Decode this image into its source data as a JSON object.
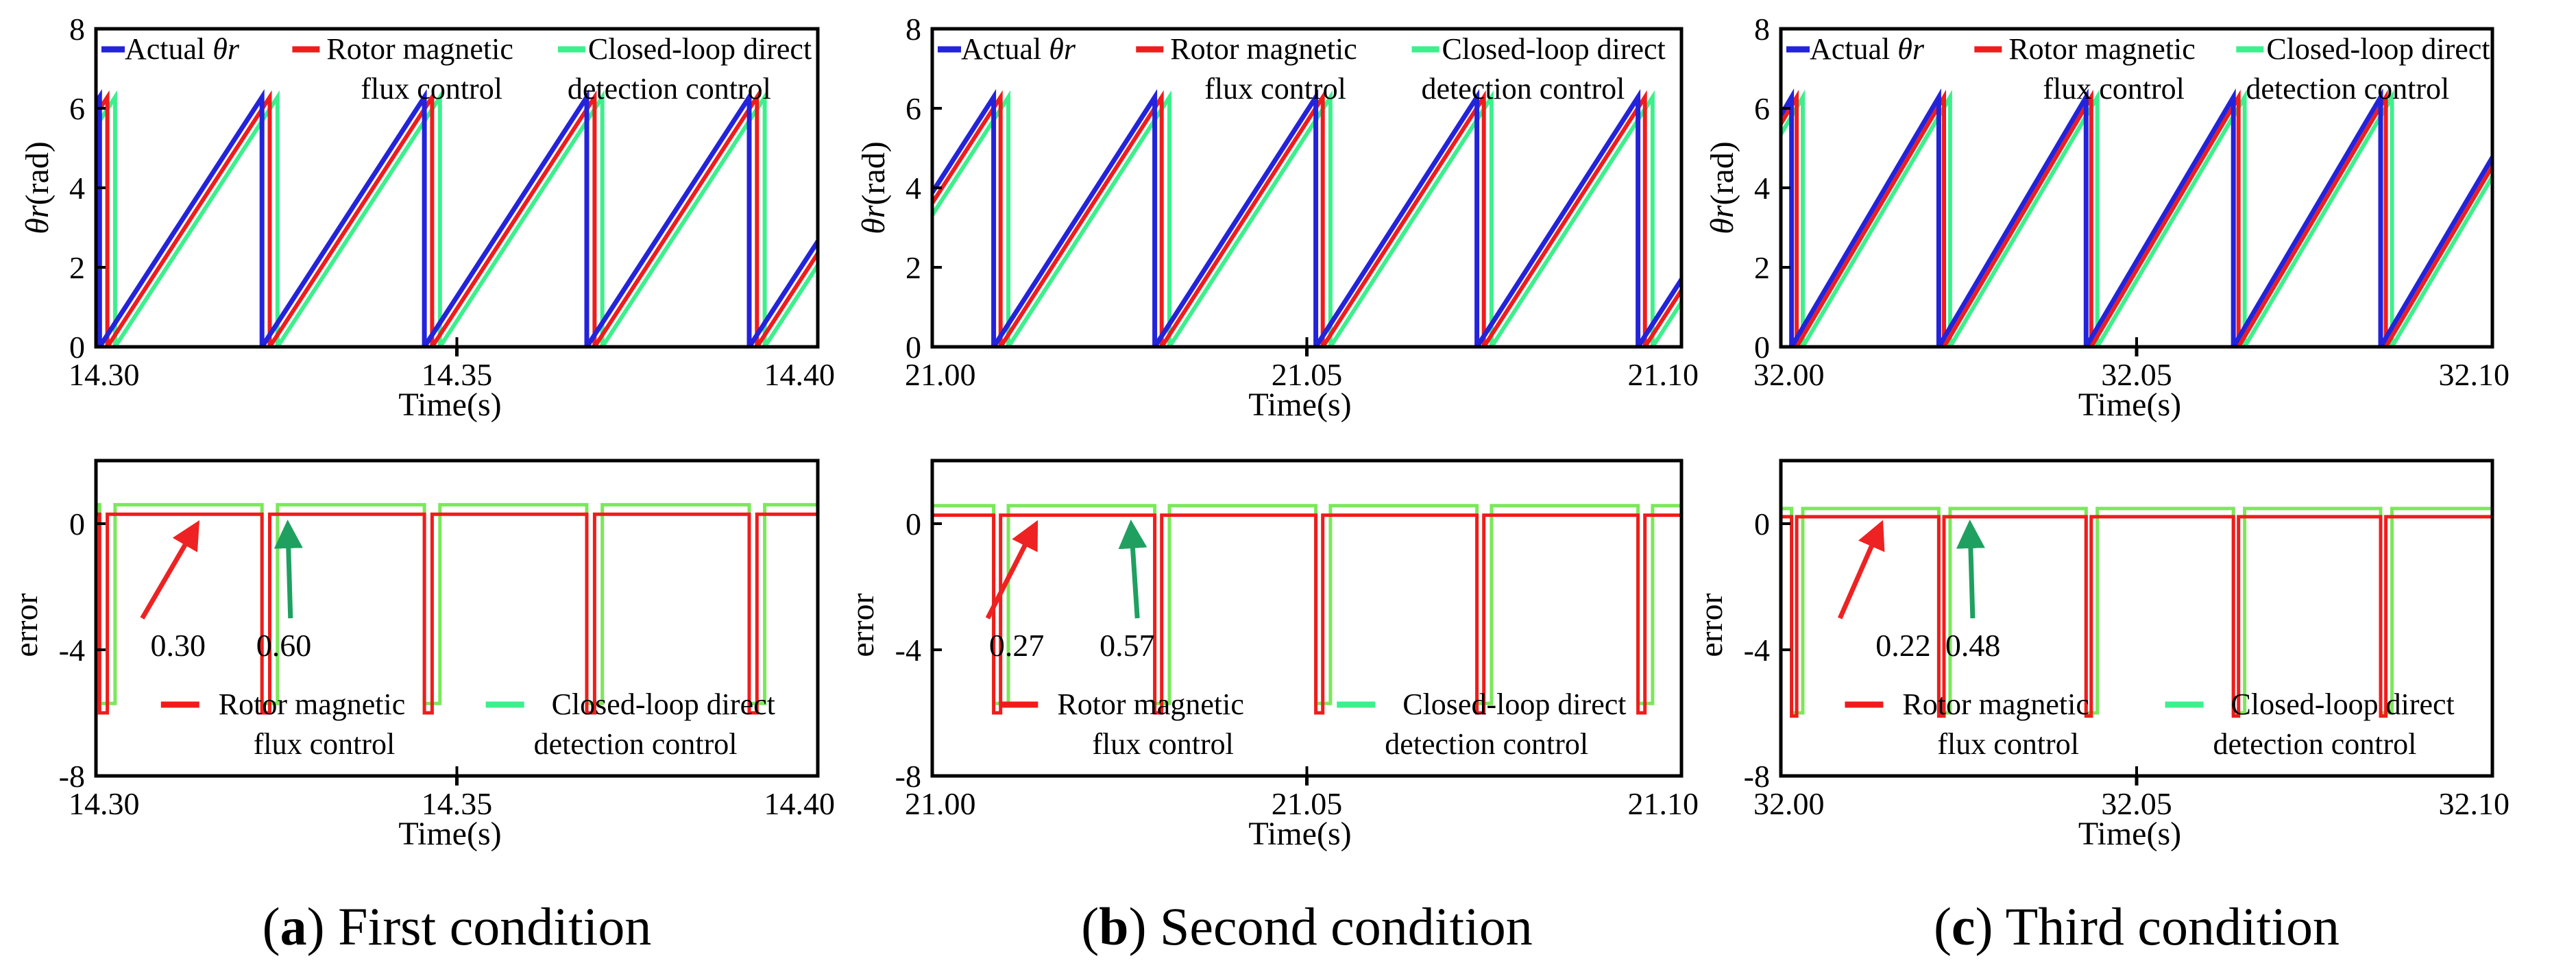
{
  "colors": {
    "actual": "#2323dc",
    "rotor": "#f01c1c",
    "closed": "#3cf08c",
    "closed_error": "#7ae85a",
    "arrow_red": "#ee2222",
    "arrow_green": "#1fa060"
  },
  "panels": [
    {
      "caption_letter": "(a)",
      "caption_text": " First condition",
      "ann_rotor": "0.30",
      "ann_closed": "0.60"
    },
    {
      "caption_letter": "(b)",
      "caption_text": " Second condition",
      "ann_rotor": "0.27",
      "ann_closed": "0.57"
    },
    {
      "caption_letter": "(c)",
      "caption_text": " Third condition",
      "ann_rotor": "0.22",
      "ann_closed": "0.48"
    }
  ],
  "chart_data": [
    {
      "type": "line",
      "panel": "a",
      "title": "",
      "xlabel": "Time(s)",
      "ylabel": "θr(rad)",
      "xlim": [
        14.3,
        14.4
      ],
      "ylim": [
        0,
        8
      ],
      "xticks": [
        "14.30",
        "14.35",
        "14.40"
      ],
      "yticks": [
        "0",
        "2",
        "4",
        "6",
        "8"
      ],
      "legend": [
        "Actual θr",
        "Rotor magnetic flux control",
        "Closed-loop direct detection control"
      ],
      "series": [
        {
          "name": "Actual θr",
          "style": "sawtooth",
          "period": 0.0225,
          "first_reset": 14.3005,
          "peak": 6.28
        },
        {
          "name": "Rotor magnetic flux control",
          "style": "sawtooth",
          "period": 0.0225,
          "first_reset": 14.3005,
          "peak": 6.28,
          "lag_rad": 0.3
        },
        {
          "name": "Closed-loop direct detection control",
          "style": "sawtooth",
          "period": 0.0225,
          "first_reset": 14.3005,
          "peak": 6.28,
          "lag_rad": 0.6
        }
      ]
    },
    {
      "type": "line",
      "panel": "a",
      "xlabel": "Time(s)",
      "ylabel": "error",
      "xlim": [
        14.3,
        14.4
      ],
      "ylim": [
        -8,
        2
      ],
      "xticks": [
        "14.30",
        "14.35",
        "14.40"
      ],
      "yticks": [
        "0",
        "-4",
        "-8"
      ],
      "legend": [
        "Rotor magnetic flux control",
        "Closed-loop direct detection control"
      ],
      "series": [
        {
          "name": "Rotor magnetic flux control",
          "steady": 0.3,
          "dip": -6.0
        },
        {
          "name": "Closed-loop direct detection control",
          "steady": 0.6,
          "dip": -5.7
        }
      ]
    },
    {
      "type": "line",
      "panel": "b",
      "xlabel": "Time(s)",
      "ylabel": "θr(rad)",
      "xlim": [
        21.0,
        21.1
      ],
      "ylim": [
        0,
        8
      ],
      "xticks": [
        "21.00",
        "21.05",
        "21.10"
      ],
      "yticks": [
        "0",
        "2",
        "4",
        "6",
        "8"
      ],
      "legend": [
        "Actual θr",
        "Rotor magnetic flux control",
        "Closed-loop direct detection control"
      ],
      "series": [
        {
          "name": "Actual θr",
          "style": "sawtooth",
          "period": 0.0215,
          "first_reset": 21.0082,
          "peak": 6.28
        },
        {
          "name": "Rotor magnetic flux control",
          "style": "sawtooth",
          "period": 0.0215,
          "first_reset": 21.0082,
          "peak": 6.28,
          "lag_rad": 0.27
        },
        {
          "name": "Closed-loop direct detection control",
          "style": "sawtooth",
          "period": 0.0215,
          "first_reset": 21.0082,
          "peak": 6.28,
          "lag_rad": 0.57
        }
      ]
    },
    {
      "type": "line",
      "panel": "b",
      "xlabel": "Time(s)",
      "ylabel": "error",
      "xlim": [
        21.0,
        21.1
      ],
      "ylim": [
        -8,
        2
      ],
      "xticks": [
        "21.00",
        "21.05",
        "21.10"
      ],
      "yticks": [
        "0",
        "-4",
        "-8"
      ],
      "legend": [
        "Rotor magnetic flux control",
        "Closed-loop direct detection control"
      ],
      "series": [
        {
          "name": "Rotor magnetic flux control",
          "steady": 0.27,
          "dip": -6.0
        },
        {
          "name": "Closed-loop direct detection control",
          "steady": 0.57,
          "dip": -5.7
        }
      ]
    },
    {
      "type": "line",
      "panel": "c",
      "xlabel": "Time(s)",
      "ylabel": "θr(rad)",
      "xlim": [
        32.0,
        32.1
      ],
      "ylim": [
        0,
        8
      ],
      "xticks": [
        "32.00",
        "32.05",
        "32.10"
      ],
      "yticks": [
        "0",
        "2",
        "4",
        "6",
        "8"
      ],
      "legend": [
        "Actual θr",
        "Rotor magnetic flux control",
        "Closed-loop direct detection control"
      ],
      "series": [
        {
          "name": "Actual θr",
          "style": "sawtooth",
          "period": 0.0207,
          "first_reset": 32.0015,
          "peak": 6.28
        },
        {
          "name": "Rotor magnetic flux control",
          "style": "sawtooth",
          "period": 0.0207,
          "first_reset": 32.0015,
          "peak": 6.28,
          "lag_rad": 0.22
        },
        {
          "name": "Closed-loop direct detection control",
          "style": "sawtooth",
          "period": 0.0207,
          "first_reset": 32.0015,
          "peak": 6.28,
          "lag_rad": 0.48
        }
      ]
    },
    {
      "type": "line",
      "panel": "c",
      "xlabel": "Time(s)",
      "ylabel": "error",
      "xlim": [
        32.0,
        32.1
      ],
      "ylim": [
        -8,
        2
      ],
      "xticks": [
        "32.00",
        "32.05",
        "32.10"
      ],
      "yticks": [
        "0",
        "-4",
        "-8"
      ],
      "legend": [
        "Rotor magnetic flux control",
        "Closed-loop direct detection control"
      ],
      "series": [
        {
          "name": "Rotor magnetic flux control",
          "steady": 0.22,
          "dip": -6.1
        },
        {
          "name": "Closed-loop direct detection control",
          "steady": 0.48,
          "dip": -6.0
        }
      ]
    }
  ]
}
